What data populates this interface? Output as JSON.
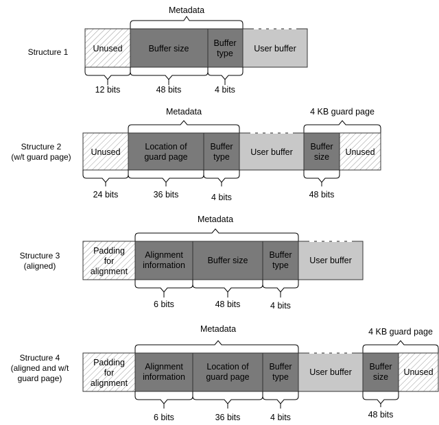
{
  "structures": [
    {
      "label": "Structure 1",
      "metadata_label": "Metadata",
      "segments": [
        "Unused",
        "Buffer size",
        "Buffer type",
        "User buffer"
      ],
      "bits": [
        "12 bits",
        "48 bits",
        "4 bits"
      ]
    },
    {
      "label": "Structure 2",
      "sublabel": "(w/t guard page)",
      "metadata_label": "Metadata",
      "guard_label": "4 KB guard page",
      "segments": [
        "Unused",
        "Location of guard page",
        "Buffer type",
        "User buffer",
        "Buffer size",
        "Unused"
      ],
      "bits": [
        "24 bits",
        "36 bits",
        "4 bits",
        "48 bits"
      ]
    },
    {
      "label": "Structure 3",
      "sublabel": "(aligned)",
      "metadata_label": "Metadata",
      "segments": [
        "Padding for alignment",
        "Alignment information",
        "Buffer size",
        "Buffer type",
        "User buffer"
      ],
      "bits": [
        "6 bits",
        "48 bits",
        "4 bits"
      ]
    },
    {
      "label": "Structure 4",
      "sublabel": "(aligned and w/t",
      "sublabel2": "guard page)",
      "metadata_label": "Metadata",
      "guard_label": "4 KB guard page",
      "segments": [
        "Padding for alignment",
        "Alignment information",
        "Location of guard page",
        "Buffer type",
        "User buffer",
        "Buffer size",
        "Unused"
      ],
      "bits": [
        "6 bits",
        "36 bits",
        "4 bits",
        "48 bits"
      ]
    }
  ],
  "colors": {
    "metadata": "#7a7a7a",
    "user_buffer": "#c8c8c8",
    "unused_hatch": "#9a9a9a"
  }
}
